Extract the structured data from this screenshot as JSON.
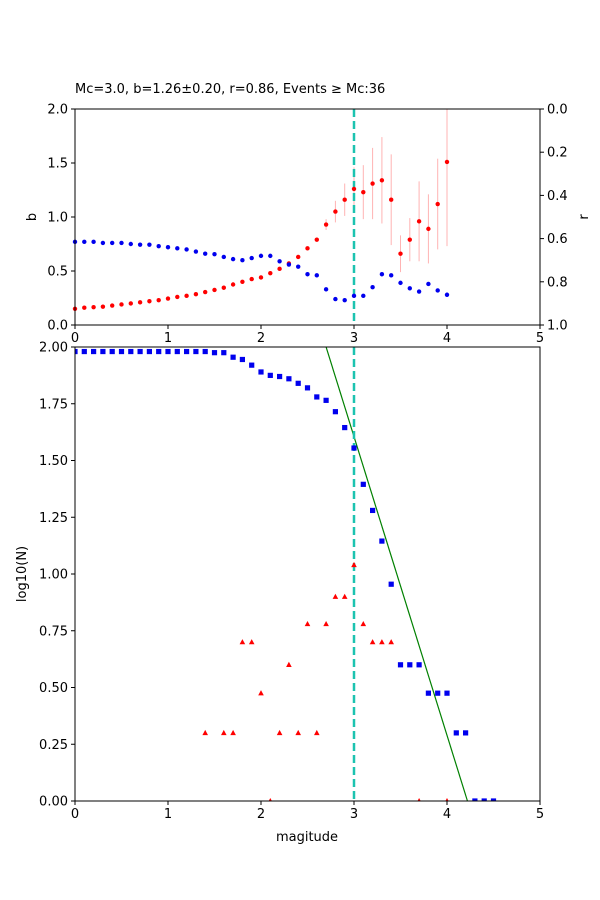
{
  "chart_data": [
    {
      "type": "scatter",
      "title": "Mc=3.0, b=1.26±0.20, r=0.86, Events ≥ Mc:36",
      "xlabel": "",
      "ylabel": "b",
      "ylabel_right": "r",
      "xlim": [
        0,
        5
      ],
      "ylim": [
        0,
        2.0
      ],
      "ylim_right": [
        1.0,
        0.0
      ],
      "x_ticks": [
        "0",
        "1",
        "2",
        "3",
        "4",
        "5"
      ],
      "y_ticks": [
        "0.0",
        "0.5",
        "1.0",
        "1.5",
        "2.0"
      ],
      "y_ticks_right": [
        "0.0",
        "0.2",
        "0.4",
        "0.6",
        "0.8",
        "1.0"
      ],
      "grid": false,
      "vline": {
        "x": 3.0,
        "color": "#1cc3b0"
      },
      "series": [
        {
          "color": "#ff0000",
          "axis": "left",
          "marker": "dot",
          "x": [
            0.0,
            0.1,
            0.2,
            0.3,
            0.4,
            0.5,
            0.6,
            0.7,
            0.8,
            0.9,
            1.0,
            1.1,
            1.2,
            1.3,
            1.4,
            1.5,
            1.6,
            1.7,
            1.8,
            1.9,
            2.0,
            2.1,
            2.2,
            2.3,
            2.4,
            2.5,
            2.6,
            2.7,
            2.8,
            2.9,
            3.0,
            3.1,
            3.2,
            3.3,
            3.4,
            3.5,
            3.6,
            3.7,
            3.8,
            3.9,
            4.0
          ],
          "y": [
            0.15,
            0.16,
            0.165,
            0.17,
            0.18,
            0.19,
            0.2,
            0.21,
            0.22,
            0.23,
            0.245,
            0.26,
            0.27,
            0.285,
            0.305,
            0.325,
            0.345,
            0.375,
            0.4,
            0.425,
            0.44,
            0.48,
            0.52,
            0.57,
            0.63,
            0.71,
            0.79,
            0.93,
            1.05,
            1.16,
            1.26,
            1.23,
            1.31,
            1.34,
            1.16,
            0.66,
            0.79,
            0.96,
            0.89,
            1.12,
            1.51
          ],
          "y_err": [
            0,
            0,
            0,
            0,
            0,
            0,
            0,
            0,
            0,
            0,
            0,
            0,
            0,
            0,
            0,
            0,
            0,
            0,
            0,
            0,
            0,
            0,
            0,
            0,
            0,
            0,
            0,
            0.05,
            0.1,
            0.15,
            0.2,
            0.25,
            0.33,
            0.4,
            0.42,
            0.17,
            0.2,
            0.37,
            0.32,
            0.42,
            0.78
          ]
        },
        {
          "color": "#0000ee",
          "axis": "right",
          "marker": "dot",
          "x": [
            0.0,
            0.1,
            0.2,
            0.3,
            0.4,
            0.5,
            0.6,
            0.7,
            0.8,
            0.9,
            1.0,
            1.1,
            1.2,
            1.3,
            1.4,
            1.5,
            1.6,
            1.7,
            1.8,
            1.9,
            2.0,
            2.1,
            2.2,
            2.3,
            2.4,
            2.5,
            2.6,
            2.7,
            2.8,
            2.9,
            3.0,
            3.1,
            3.2,
            3.3,
            3.4,
            3.5,
            3.6,
            3.7,
            3.8,
            3.9,
            4.0
          ],
          "y": [
            0.615,
            0.615,
            0.615,
            0.62,
            0.62,
            0.62,
            0.625,
            0.628,
            0.628,
            0.635,
            0.64,
            0.645,
            0.65,
            0.66,
            0.67,
            0.672,
            0.685,
            0.695,
            0.7,
            0.69,
            0.68,
            0.68,
            0.705,
            0.72,
            0.73,
            0.765,
            0.77,
            0.835,
            0.88,
            0.885,
            0.865,
            0.865,
            0.825,
            0.765,
            0.77,
            0.805,
            0.83,
            0.845,
            0.81,
            0.84,
            0.86
          ]
        }
      ]
    },
    {
      "type": "scatter",
      "title": "",
      "xlabel": "magitude",
      "ylabel": "log10(N)",
      "xlim": [
        0,
        5
      ],
      "ylim": [
        0,
        2.0
      ],
      "x_ticks": [
        "0",
        "1",
        "2",
        "3",
        "4",
        "5"
      ],
      "y_ticks": [
        "0.00",
        "0.25",
        "0.50",
        "0.75",
        "1.00",
        "1.25",
        "1.50",
        "1.75",
        "2.00"
      ],
      "grid": false,
      "vline": {
        "x": 3.0,
        "color": "#1cc3b0"
      },
      "fit_line": {
        "color": "#008000",
        "x": [
          2.7,
          4.22
        ],
        "y": [
          2.0,
          0.0
        ]
      },
      "series": [
        {
          "color": "#0000ee",
          "marker": "square",
          "x": [
            0.0,
            0.1,
            0.2,
            0.3,
            0.4,
            0.5,
            0.6,
            0.7,
            0.8,
            0.9,
            1.0,
            1.1,
            1.2,
            1.3,
            1.4,
            1.5,
            1.6,
            1.7,
            1.8,
            1.9,
            2.0,
            2.1,
            2.2,
            2.3,
            2.4,
            2.5,
            2.6,
            2.7,
            2.8,
            2.9,
            3.0,
            3.1,
            3.2,
            3.3,
            3.4,
            3.5,
            3.6,
            3.7,
            3.8,
            3.9,
            4.0,
            4.1,
            4.2,
            4.3,
            4.4,
            4.5
          ],
          "y": [
            1.98,
            1.98,
            1.98,
            1.98,
            1.98,
            1.98,
            1.98,
            1.98,
            1.98,
            1.98,
            1.98,
            1.98,
            1.98,
            1.98,
            1.98,
            1.975,
            1.975,
            1.955,
            1.945,
            1.92,
            1.89,
            1.875,
            1.87,
            1.86,
            1.84,
            1.82,
            1.78,
            1.765,
            1.715,
            1.645,
            1.555,
            1.395,
            1.28,
            1.145,
            0.955,
            0.6,
            0.6,
            0.6,
            0.475,
            0.475,
            0.475,
            0.3,
            0.3,
            0.0,
            0.0,
            0.0
          ]
        },
        {
          "color": "#ff0000",
          "marker": "triangle",
          "x": [
            1.4,
            1.6,
            1.7,
            1.8,
            1.9,
            2.0,
            2.1,
            2.2,
            2.3,
            2.4,
            2.5,
            2.6,
            2.7,
            2.8,
            2.9,
            3.0,
            3.1,
            3.2,
            3.3,
            3.4,
            3.7,
            4.0
          ],
          "y": [
            0.3,
            0.3,
            0.3,
            0.7,
            0.7,
            0.475,
            0.0,
            0.3,
            0.6,
            0.3,
            0.78,
            0.3,
            0.78,
            0.9,
            0.9,
            1.04,
            0.78,
            0.7,
            0.7,
            0.7,
            0.0,
            0.0
          ]
        }
      ]
    }
  ]
}
